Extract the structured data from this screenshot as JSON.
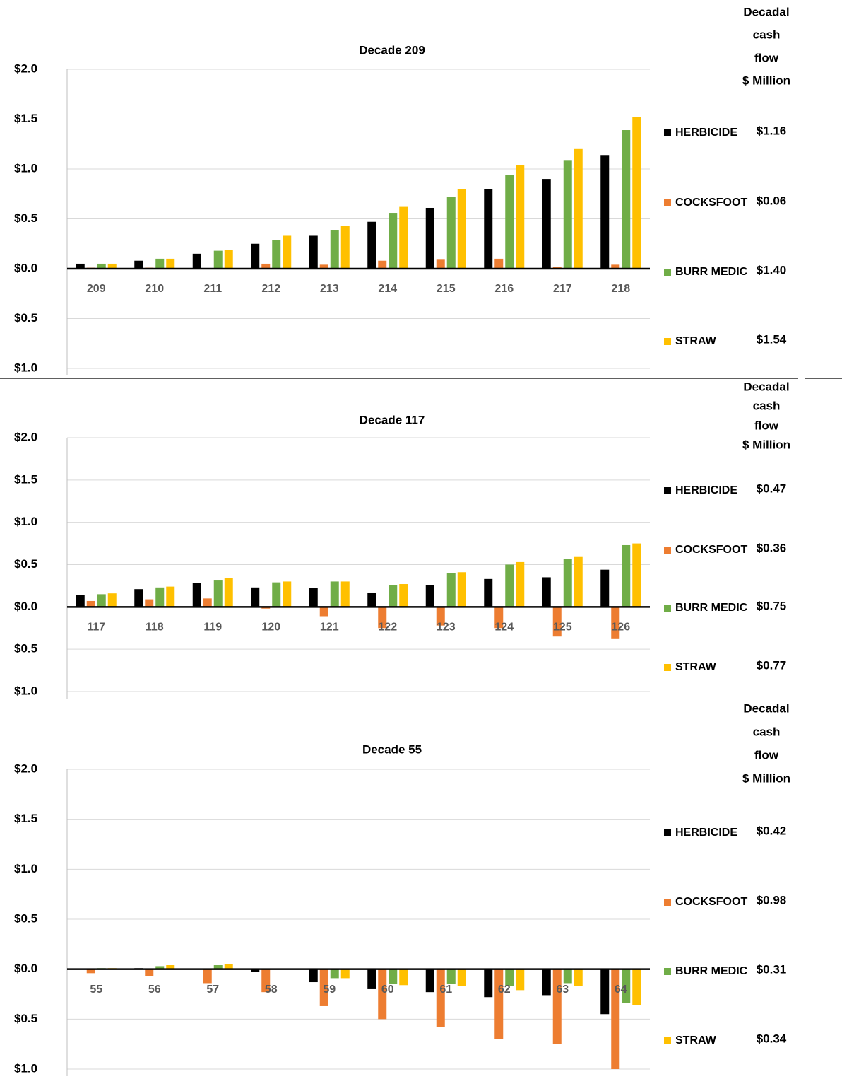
{
  "chart_data": [
    {
      "type": "bar",
      "title": "Decade  209",
      "categories": [
        "209",
        "210",
        "211",
        "212",
        "213",
        "214",
        "215",
        "216",
        "217",
        "218"
      ],
      "series": [
        {
          "name": "HERBICIDE",
          "color": "#000000",
          "values": [
            0.05,
            0.08,
            0.15,
            0.25,
            0.33,
            0.47,
            0.61,
            0.8,
            0.9,
            1.14
          ]
        },
        {
          "name": "COCKSFOOT",
          "color": "#ed7d31",
          "values": [
            0.01,
            0.01,
            0.0,
            0.05,
            0.04,
            0.08,
            0.09,
            0.1,
            0.02,
            0.04
          ]
        },
        {
          "name": "BURR MEDIC",
          "color": "#70ad47",
          "values": [
            0.05,
            0.1,
            0.18,
            0.29,
            0.39,
            0.56,
            0.72,
            0.94,
            1.09,
            1.39
          ]
        },
        {
          "name": "STRAW",
          "color": "#ffc000",
          "values": [
            0.05,
            0.1,
            0.19,
            0.33,
            0.43,
            0.62,
            0.8,
            1.04,
            1.2,
            1.52
          ]
        }
      ],
      "ylim": [
        -1,
        2
      ],
      "yticks": [
        {
          "value": -1,
          "label": "$1.0"
        },
        {
          "value": -0.5,
          "label": "$0.5"
        },
        {
          "value": 0,
          "label": "$0.0"
        },
        {
          "value": 0.5,
          "label": "$0.5"
        },
        {
          "value": 1,
          "label": "$1.0"
        },
        {
          "value": 1.5,
          "label": "$1.5"
        },
        {
          "value": 2,
          "label": "$2.0"
        }
      ],
      "grid": true,
      "summary_title": [
        "Decadal",
        "cash",
        "flow",
        "$ Million"
      ],
      "cash_flow": [
        1.16,
        0.06,
        1.4,
        1.54
      ],
      "cash_flow_labels": [
        "$1.16",
        "$0.06",
        "$1.40",
        "$1.54"
      ]
    },
    {
      "type": "bar",
      "title": "Decade  117",
      "categories": [
        "117",
        "118",
        "119",
        "120",
        "121",
        "122",
        "123",
        "124",
        "125",
        "126"
      ],
      "series": [
        {
          "name": "HERBICIDE",
          "color": "#000000",
          "values": [
            0.14,
            0.21,
            0.28,
            0.23,
            0.22,
            0.17,
            0.26,
            0.33,
            0.35,
            0.44
          ]
        },
        {
          "name": "COCKSFOOT",
          "color": "#ed7d31",
          "values": [
            0.07,
            0.09,
            0.1,
            -0.02,
            -0.11,
            -0.25,
            -0.22,
            -0.25,
            -0.35,
            -0.38
          ]
        },
        {
          "name": "BURR MEDIC",
          "color": "#70ad47",
          "values": [
            0.15,
            0.23,
            0.32,
            0.29,
            0.3,
            0.26,
            0.4,
            0.5,
            0.57,
            0.73
          ]
        },
        {
          "name": "STRAW",
          "color": "#ffc000",
          "values": [
            0.16,
            0.24,
            0.34,
            0.3,
            0.3,
            0.27,
            0.41,
            0.53,
            0.59,
            0.75
          ]
        }
      ],
      "ylim": [
        -1,
        2
      ],
      "yticks": [
        {
          "value": -1,
          "label": "$1.0"
        },
        {
          "value": -0.5,
          "label": "$0.5"
        },
        {
          "value": 0,
          "label": "$0.0"
        },
        {
          "value": 0.5,
          "label": "$0.5"
        },
        {
          "value": 1,
          "label": "$1.0"
        },
        {
          "value": 1.5,
          "label": "$1.5"
        },
        {
          "value": 2,
          "label": "$2.0"
        }
      ],
      "grid": true,
      "summary_title": [
        "Decadal",
        "cash",
        "flow",
        "$ Million"
      ],
      "cash_flow": [
        0.47,
        -0.36,
        0.75,
        0.77
      ],
      "cash_flow_labels": [
        "$0.47",
        "$0.36",
        "$0.75",
        "$0.77"
      ]
    },
    {
      "type": "bar",
      "title": "Decade  55",
      "categories": [
        "55",
        "56",
        "57",
        "58",
        "59",
        "60",
        "61",
        "62",
        "63",
        "64"
      ],
      "series": [
        {
          "name": "HERBICIDE",
          "color": "#000000",
          "values": [
            0.0,
            0.01,
            0.0,
            -0.03,
            -0.13,
            -0.2,
            -0.23,
            -0.28,
            -0.26,
            -0.45
          ]
        },
        {
          "name": "COCKSFOOT",
          "color": "#ed7d31",
          "values": [
            -0.04,
            -0.07,
            -0.14,
            -0.23,
            -0.37,
            -0.5,
            -0.58,
            -0.7,
            -0.75,
            -1.0
          ]
        },
        {
          "name": "BURR MEDIC",
          "color": "#70ad47",
          "values": [
            0.01,
            0.03,
            0.04,
            0.0,
            -0.09,
            -0.15,
            -0.15,
            -0.17,
            -0.14,
            -0.34
          ]
        },
        {
          "name": "STRAW",
          "color": "#ffc000",
          "values": [
            0.01,
            0.04,
            0.05,
            0.0,
            -0.09,
            -0.16,
            -0.17,
            -0.21,
            -0.17,
            -0.36
          ]
        }
      ],
      "ylim": [
        -1,
        2
      ],
      "yticks": [
        {
          "value": -1,
          "label": "$1.0"
        },
        {
          "value": -0.5,
          "label": "$0.5"
        },
        {
          "value": 0,
          "label": "$0.0"
        },
        {
          "value": 0.5,
          "label": "$0.5"
        },
        {
          "value": 1,
          "label": "$1.0"
        },
        {
          "value": 1.5,
          "label": "$1.5"
        },
        {
          "value": 2,
          "label": "$2.0"
        }
      ],
      "grid": true,
      "summary_title": [
        "Decadal",
        "cash",
        "flow",
        "$ Million"
      ],
      "cash_flow": [
        -0.42,
        -0.98,
        -0.31,
        -0.34
      ],
      "cash_flow_labels": [
        "$0.42",
        "$0.98",
        "$0.31",
        "$0.34"
      ]
    }
  ]
}
